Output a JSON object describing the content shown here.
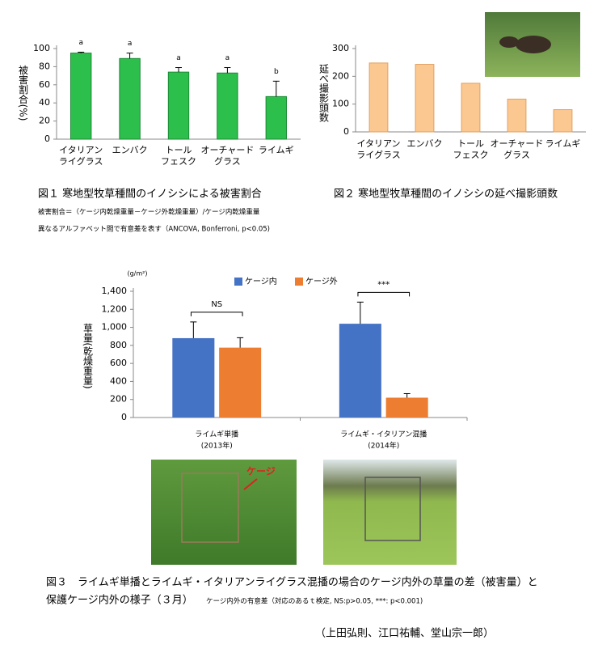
{
  "chart_data": [
    {
      "type": "bar",
      "caption": "図１ 寒地型牧草種間のイノシシによる被害割合",
      "notes": [
        "被害割合＝（ケージ内乾燥重量－ケージ外乾燥重量）/ケージ内乾燥重量",
        "異なるアルファベット間で有意差を表す（ANCOVA, Bonferroni, p<0.05)"
      ],
      "ylabel": "被害割合(%)",
      "categories": [
        [
          "イタリアン",
          "ライグラス"
        ],
        [
          "エンバク"
        ],
        [
          "トール",
          "フェスク"
        ],
        [
          "オーチャード",
          "グラス"
        ],
        [
          "ライムギ"
        ]
      ],
      "values": [
        95,
        89,
        74,
        73,
        47
      ],
      "errors": [
        1,
        6,
        5,
        6,
        17
      ],
      "letters": [
        "a",
        "a",
        "a",
        "a",
        "b"
      ],
      "color": "#2dbf4c",
      "edgecolor": "#1a8a34",
      "ylim": [
        0,
        100
      ],
      "yticks": [
        0,
        20,
        40,
        60,
        80,
        100
      ]
    },
    {
      "type": "bar",
      "caption": "図２ 寒地型牧草種間のイノシシの延べ撮影頭数",
      "ylabel": "延べ撮影頭数",
      "categories": [
        [
          "イタリアン",
          "ライグラス"
        ],
        [
          "エンバク"
        ],
        [
          "トール",
          "フェスク"
        ],
        [
          "オーチャード",
          "グラス"
        ],
        [
          "ライムギ"
        ]
      ],
      "values": [
        248,
        243,
        175,
        118,
        80
      ],
      "color": "#fcc891",
      "edgecolor": "#e0a060",
      "ylim": [
        0,
        300
      ],
      "yticks": [
        0,
        100,
        200,
        300
      ]
    },
    {
      "type": "bar",
      "unit": "(g/m²)",
      "ylabel": "草量(乾燥重量)",
      "categories": [
        [
          "ライムギ単播",
          "(2013年)"
        ],
        [
          "ライムギ・イタリアン混播",
          "(2014年)"
        ]
      ],
      "series": [
        {
          "name": "ケージ内",
          "color": "#4472c4",
          "values": [
            880,
            1040
          ],
          "errors": [
            180,
            240
          ]
        },
        {
          "name": "ケージ外",
          "color": "#ed7d31",
          "values": [
            775,
            220
          ],
          "errors": [
            110,
            45
          ]
        }
      ],
      "annotations": [
        "NS",
        "***"
      ],
      "ylim": [
        0,
        1400
      ],
      "yticks": [
        0,
        200,
        400,
        600,
        800,
        {
          "value": 1000,
          "label": "1,000"
        },
        {
          "value": 1200,
          "label": "1,200"
        },
        {
          "value": 1400,
          "label": "1,400"
        }
      ],
      "caption": [
        "図３　ライムギ単播とライムギ・イタリアンライグラス混播の場合のケージ内外の草量の差（被害量）と",
        "保護ケージ内外の様子（３月）"
      ],
      "note": "ケージ内外の有意差（対応のあるｔ検定, NS:p>0.05, ***: p<0.001)"
    }
  ],
  "photo_label": "ケージ",
  "authors": "（上田弘則、江口祐輔、堂山宗一郎）"
}
